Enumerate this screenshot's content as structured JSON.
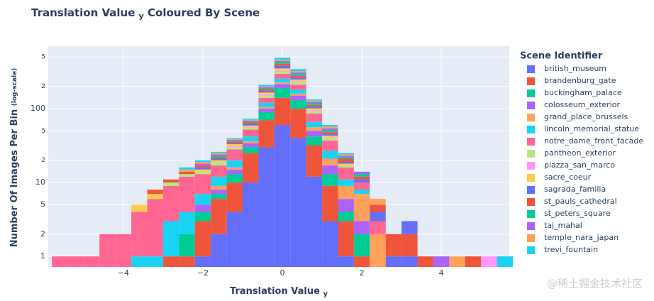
{
  "chart_data": {
    "type": "histogram",
    "title": [
      "Translation Value",
      "y",
      "Coloured By Scene"
    ],
    "x_label": [
      "Translation Value",
      "y"
    ],
    "y_label": [
      "Number Of Images Per Bin",
      "(log-scale)"
    ],
    "legend_title": "Scene Identifier",
    "legend_position": "right",
    "watermark": "@稀土掘金技术社区",
    "log_y": true,
    "grid": true,
    "barmode": "stack",
    "xlim": [
      -5.89,
      5.71
    ],
    "ylim": [
      0.72,
      700
    ],
    "xticks": [
      {
        "value": -4,
        "label": "−4"
      },
      {
        "value": -2,
        "label": "−2"
      },
      0,
      2,
      4
    ],
    "yticks": [
      1,
      2,
      5,
      10,
      {
        "value": 20,
        "label": "2"
      },
      {
        "value": 50,
        "label": "5"
      },
      100,
      {
        "value": 200,
        "label": "2"
      },
      {
        "value": 500,
        "label": "5"
      }
    ],
    "bins": [
      -5.8,
      -5.4,
      -5.0,
      -4.6,
      -4.2,
      -3.8,
      -3.4,
      -3.0,
      -2.6,
      -2.2,
      -1.8,
      -1.4,
      -1.0,
      -0.6,
      -0.2,
      0.2,
      0.6,
      1.0,
      1.4,
      1.8,
      2.2,
      2.6,
      3.0,
      3.4,
      3.8,
      4.2,
      4.6,
      5.0,
      5.4,
      5.8
    ],
    "series": [
      {
        "name": "british_museum",
        "color": "#636efa",
        "values": [
          0,
          0,
          0,
          0,
          0,
          0,
          0,
          0,
          0,
          1,
          2,
          4,
          10,
          30,
          60,
          40,
          12,
          3,
          1,
          0,
          0,
          0,
          1,
          0,
          0,
          0,
          0,
          0,
          0
        ]
      },
      {
        "name": "brandenburg_gate",
        "color": "#EF553B",
        "values": [
          0,
          0,
          0,
          0,
          0,
          0,
          0,
          1,
          1,
          2,
          4,
          6,
          15,
          40,
          80,
          60,
          20,
          6,
          2,
          1,
          0,
          0,
          1,
          0,
          0,
          0,
          0,
          0,
          0
        ]
      },
      {
        "name": "buckingham_palace",
        "color": "#00cc96",
        "values": [
          0,
          0,
          0,
          0,
          0,
          0,
          0,
          0,
          1,
          1,
          1,
          3,
          5,
          20,
          50,
          30,
          10,
          4,
          1,
          1,
          0,
          0,
          0,
          0,
          0,
          0,
          0,
          0,
          0
        ]
      },
      {
        "name": "colosseum_exterior",
        "color": "#ab63fa",
        "values": [
          0,
          0,
          0,
          0,
          0,
          0,
          0,
          0,
          0,
          1,
          1,
          2,
          4,
          10,
          25,
          20,
          8,
          4,
          2,
          1,
          0,
          0,
          0,
          0,
          0,
          0,
          0,
          0,
          0
        ]
      },
      {
        "name": "grand_place_brussels",
        "color": "#FFA15A",
        "values": [
          0,
          0,
          0,
          0,
          0,
          0,
          0,
          0,
          0,
          0,
          1,
          1,
          2,
          5,
          10,
          10,
          6,
          4,
          3,
          4,
          2,
          0,
          0,
          0,
          0,
          0,
          0,
          0,
          0
        ]
      },
      {
        "name": "lincoln_memorial_statue",
        "color": "#19d3f3",
        "values": [
          0,
          0,
          0,
          0,
          0,
          1,
          1,
          2,
          2,
          2,
          3,
          4,
          6,
          15,
          30,
          20,
          10,
          6,
          2,
          1,
          0,
          0,
          0,
          0,
          0,
          0,
          0,
          0,
          0
        ]
      },
      {
        "name": "notre_dame_front_facade",
        "color": "#FF6692",
        "values": [
          1,
          1,
          1,
          2,
          2,
          3,
          5,
          6,
          8,
          6,
          5,
          8,
          10,
          20,
          40,
          30,
          20,
          10,
          5,
          2,
          1,
          0,
          0,
          0,
          0,
          0,
          0,
          0,
          0
        ]
      },
      {
        "name": "pantheon_exterior",
        "color": "#B6E880",
        "values": [
          0,
          0,
          0,
          0,
          0,
          0,
          0,
          1,
          1,
          1,
          2,
          2,
          3,
          10,
          20,
          15,
          6,
          3,
          1,
          0,
          0,
          0,
          0,
          0,
          0,
          0,
          0,
          0,
          0
        ]
      },
      {
        "name": "piazza_san_marco",
        "color": "#FF97FF",
        "values": [
          0,
          0,
          0,
          0,
          0,
          0,
          0,
          0,
          0,
          0,
          0,
          1,
          1,
          5,
          10,
          8,
          3,
          1,
          0,
          0,
          0,
          0,
          0,
          0,
          0,
          0,
          0,
          1,
          0
        ]
      },
      {
        "name": "sacre_coeur",
        "color": "#FECB52",
        "values": [
          0,
          0,
          0,
          0,
          0,
          1,
          1,
          0,
          0,
          1,
          1,
          2,
          3,
          10,
          25,
          15,
          6,
          2,
          1,
          0,
          0,
          0,
          0,
          0,
          0,
          0,
          0,
          0,
          0
        ]
      },
      {
        "name": "sagrada_familia",
        "color": "#636efa",
        "values": [
          0,
          0,
          0,
          0,
          0,
          0,
          0,
          0,
          0,
          1,
          1,
          1,
          3,
          10,
          30,
          15,
          5,
          2,
          1,
          1,
          1,
          1,
          1,
          0,
          0,
          0,
          0,
          0,
          0
        ]
      },
      {
        "name": "st_pauls_cathedral",
        "color": "#EF553B",
        "values": [
          0,
          0,
          0,
          0,
          0,
          0,
          1,
          1,
          1,
          1,
          1,
          2,
          3,
          10,
          25,
          15,
          6,
          3,
          2,
          1,
          1,
          1,
          0,
          1,
          0,
          0,
          1,
          0,
          0
        ]
      },
      {
        "name": "st_peters_square",
        "color": "#00cc96",
        "values": [
          0,
          0,
          0,
          0,
          0,
          0,
          0,
          0,
          0,
          0,
          1,
          1,
          2,
          5,
          20,
          15,
          6,
          3,
          1,
          1,
          0,
          0,
          0,
          0,
          0,
          0,
          0,
          0,
          0
        ]
      },
      {
        "name": "taj_mahal",
        "color": "#ab63fa",
        "values": [
          0,
          0,
          0,
          0,
          0,
          0,
          0,
          0,
          0,
          1,
          1,
          1,
          2,
          5,
          15,
          15,
          5,
          3,
          1,
          1,
          0,
          0,
          0,
          0,
          1,
          0,
          0,
          0,
          0
        ]
      },
      {
        "name": "temple_nara_japan",
        "color": "#FFA15A",
        "values": [
          0,
          0,
          0,
          0,
          0,
          0,
          0,
          0,
          1,
          1,
          1,
          1,
          2,
          5,
          20,
          15,
          5,
          3,
          1,
          0,
          1,
          0,
          0,
          0,
          0,
          1,
          0,
          0,
          0
        ]
      },
      {
        "name": "trevi_fountain",
        "color": "#19d3f3",
        "values": [
          0,
          0,
          0,
          0,
          0,
          0,
          0,
          0,
          1,
          1,
          1,
          1,
          2,
          10,
          30,
          20,
          5,
          3,
          1,
          0,
          0,
          0,
          0,
          0,
          0,
          0,
          0,
          0,
          1
        ]
      }
    ]
  }
}
